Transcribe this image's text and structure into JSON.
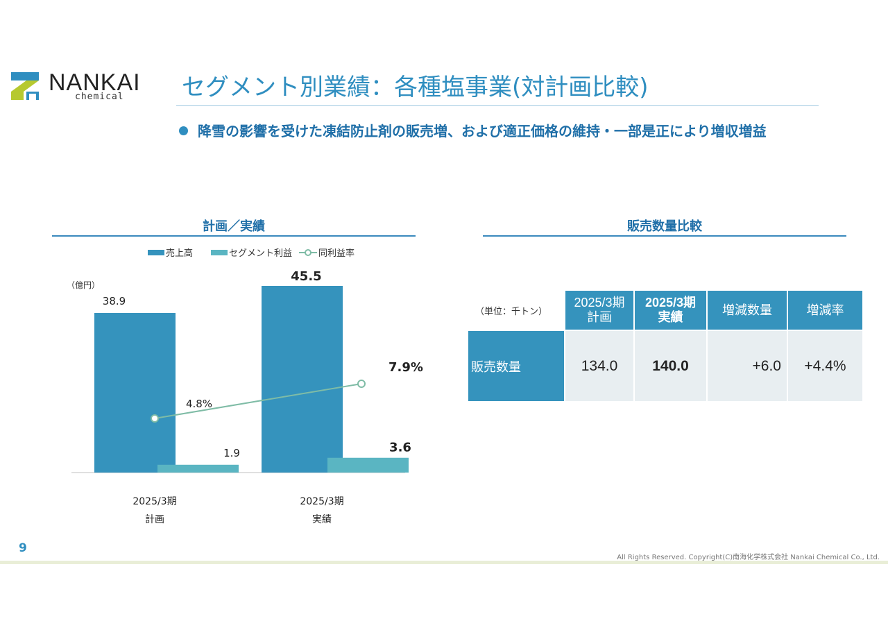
{
  "logo": {
    "word": "NANKAI",
    "sub": "chemical",
    "colors": {
      "blue": "#2f8ec0",
      "green": "#b6c92f"
    }
  },
  "page": {
    "title": "セグメント別業績：各種塩事業(対計画比較)",
    "headline": "降雪の影響を受けた凍結防止剤の販売増、および適正価格の維持・一部是正により増収増益"
  },
  "left_section": {
    "title": "計画／実績"
  },
  "right_section": {
    "title": "販売数量比較"
  },
  "chart_data": {
    "type": "bar",
    "unit": "（億円）",
    "categories": [
      [
        "2025/3期",
        "計画"
      ],
      [
        "2025/3期",
        "実績"
      ]
    ],
    "series": [
      {
        "name": "売上高",
        "kind": "bar",
        "color": "#3593bd",
        "values": [
          38.9,
          45.5
        ],
        "labels": [
          "38.9",
          "45.5"
        ]
      },
      {
        "name": "セグメント利益",
        "kind": "bar",
        "color": "#5ab5c2",
        "values": [
          1.9,
          3.6
        ],
        "labels": [
          "1.9",
          "3.6"
        ]
      },
      {
        "name": "同利益率",
        "kind": "line",
        "color": "#7fbca6",
        "values": [
          4.8,
          7.9
        ],
        "labels": [
          "4.8%",
          "7.9%"
        ]
      }
    ],
    "ylim": [
      0,
      45.5
    ],
    "grid": false,
    "legend": "top-center"
  },
  "table": {
    "unit_label": "（単位：千トン）",
    "headers": [
      {
        "line1": "2025/3期",
        "line2": "計画"
      },
      {
        "line1": "2025/3期",
        "line2": "実績"
      },
      {
        "line1": "増減数量"
      },
      {
        "line1": "増減率"
      }
    ],
    "row": {
      "label": "販売数量",
      "values": [
        "134.0",
        "140.0",
        "+6.0",
        "+4.4%"
      ]
    }
  },
  "footer": {
    "page_number": "9",
    "copyright": "All Rights Reserved. Copyright(C)南海化学株式会社 Nankai Chemical Co., Ltd."
  }
}
